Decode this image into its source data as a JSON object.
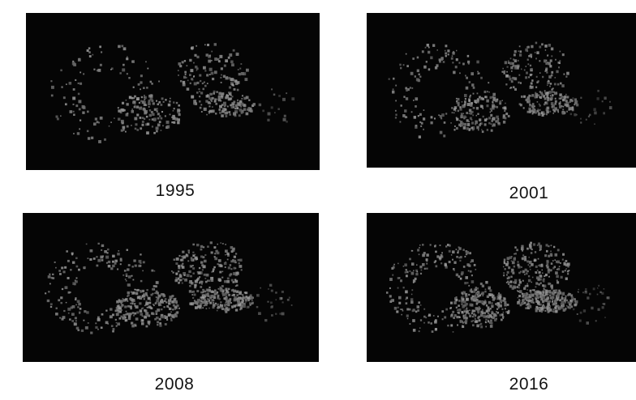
{
  "panels": [
    {
      "year": "1995",
      "density": 0.45
    },
    {
      "year": "2001",
      "density": 0.55
    },
    {
      "year": "2008",
      "density": 0.75
    },
    {
      "year": "2016",
      "density": 0.85
    }
  ],
  "colors": {
    "background": "#050505",
    "urban": "#8a8a8a",
    "caption": "#141414"
  }
}
